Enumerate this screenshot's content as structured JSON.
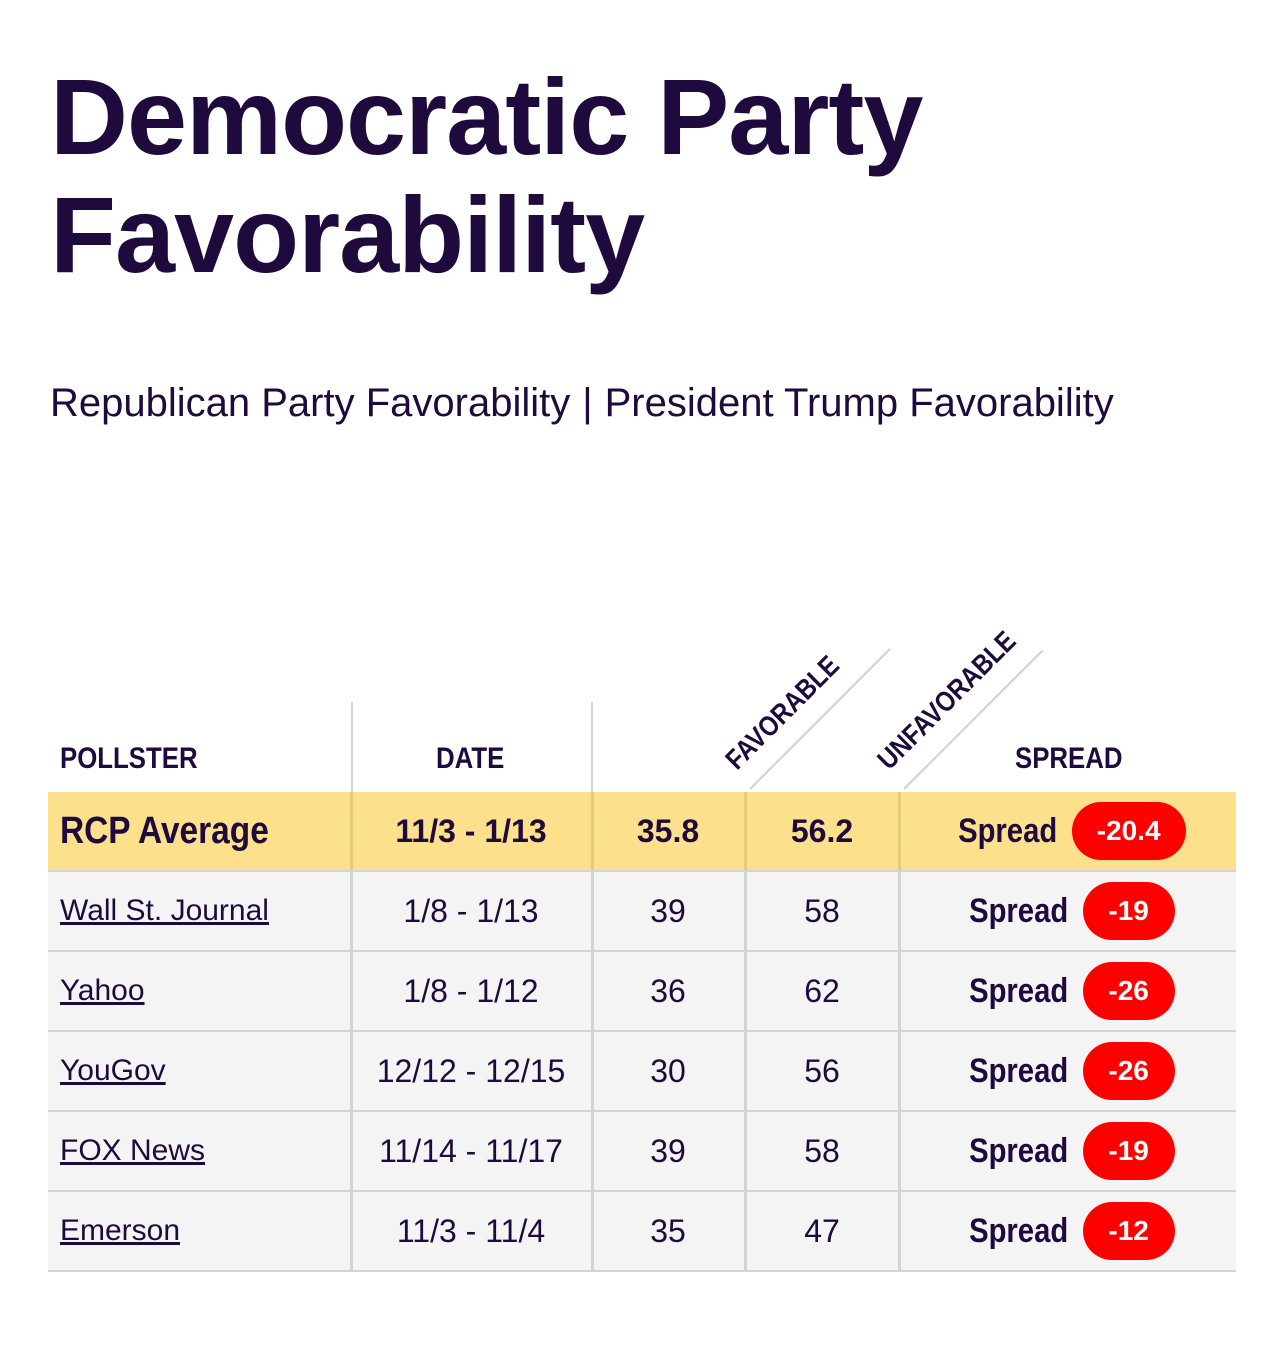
{
  "page": {
    "title_line1": "Democratic Party",
    "title_line2": "Favorability"
  },
  "nav": {
    "link_republican": "Republican Party Favorability",
    "separator": "|",
    "link_trump": "President Trump Favorability"
  },
  "table": {
    "headers": {
      "pollster": "POLLSTER",
      "date": "DATE",
      "favorable": "FAVORABLE",
      "unfavorable": "UNFAVORABLE",
      "spread": "SPREAD"
    },
    "average": {
      "pollster": "RCP Average",
      "date": "11/3 - 1/13",
      "favorable": "35.8",
      "unfavorable": "56.2",
      "spread_label": "Spread",
      "spread": "-20.4"
    },
    "rows": [
      {
        "pollster": "Wall St. Journal",
        "date": "1/8 - 1/13",
        "favorable": "39",
        "unfavorable": "58",
        "spread_label": "Spread",
        "spread": "-19"
      },
      {
        "pollster": "Yahoo",
        "date": "1/8 - 1/12",
        "favorable": "36",
        "unfavorable": "62",
        "spread_label": "Spread",
        "spread": "-26"
      },
      {
        "pollster": "YouGov",
        "date": "12/12 - 12/15",
        "favorable": "30",
        "unfavorable": "56",
        "spread_label": "Spread",
        "spread": "-26"
      },
      {
        "pollster": "FOX News",
        "date": "11/14 - 11/17",
        "favorable": "39",
        "unfavorable": "58",
        "spread_label": "Spread",
        "spread": "-19"
      },
      {
        "pollster": "Emerson",
        "date": "11/3 - 11/4",
        "favorable": "35",
        "unfavorable": "47",
        "spread_label": "Spread",
        "spread": "-12"
      }
    ]
  },
  "colors": {
    "text": "#1e0a3c",
    "average_row": "#fde08c",
    "data_row": "#f4f4f4",
    "spread_badge": "#ff0000"
  }
}
